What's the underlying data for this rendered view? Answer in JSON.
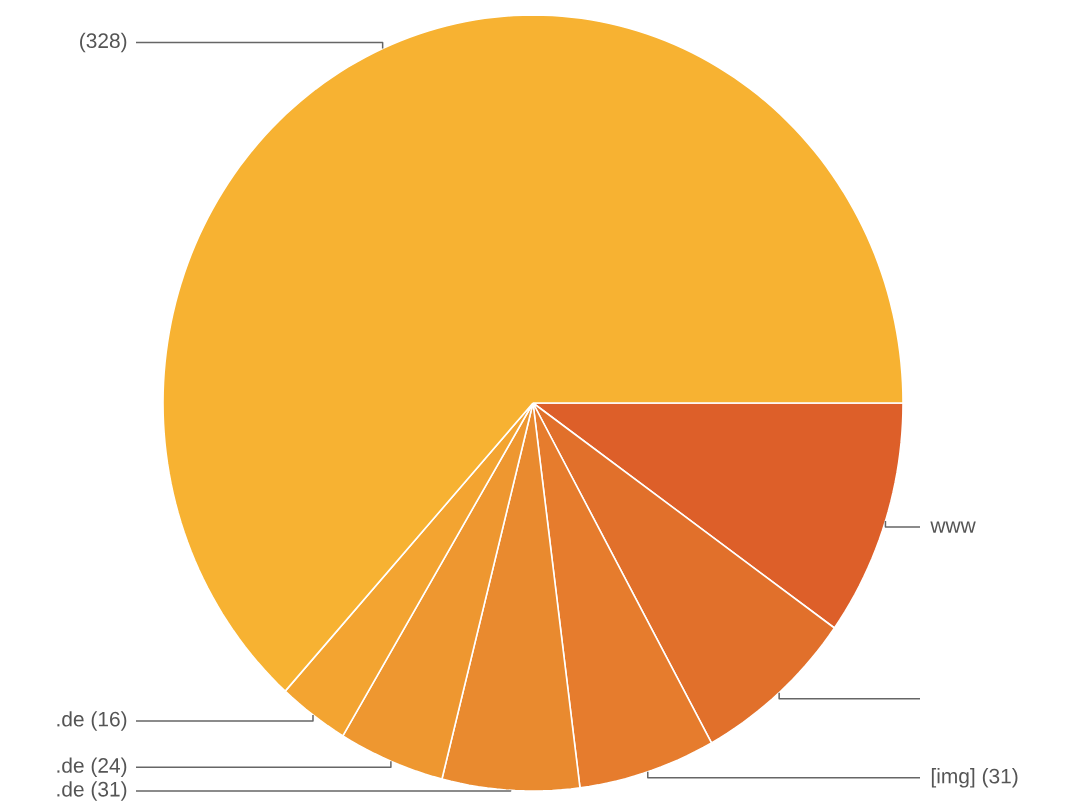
{
  "chart_data": {
    "type": "pie",
    "categories": [
      "www",
      null,
      "[img]",
      ".de",
      ".de",
      ".de",
      null
    ],
    "values": [
      51,
      37,
      31,
      31,
      24,
      16,
      328
    ],
    "value_labels": [
      null,
      null,
      "(31)",
      "(31)",
      "(24)",
      "(16)",
      "(328)"
    ],
    "colors": [
      "#dd5f29",
      "#e1702b",
      "#e67c2d",
      "#e98a2f",
      "#ee9730",
      "#f3a431",
      "#f7b232"
    ]
  }
}
